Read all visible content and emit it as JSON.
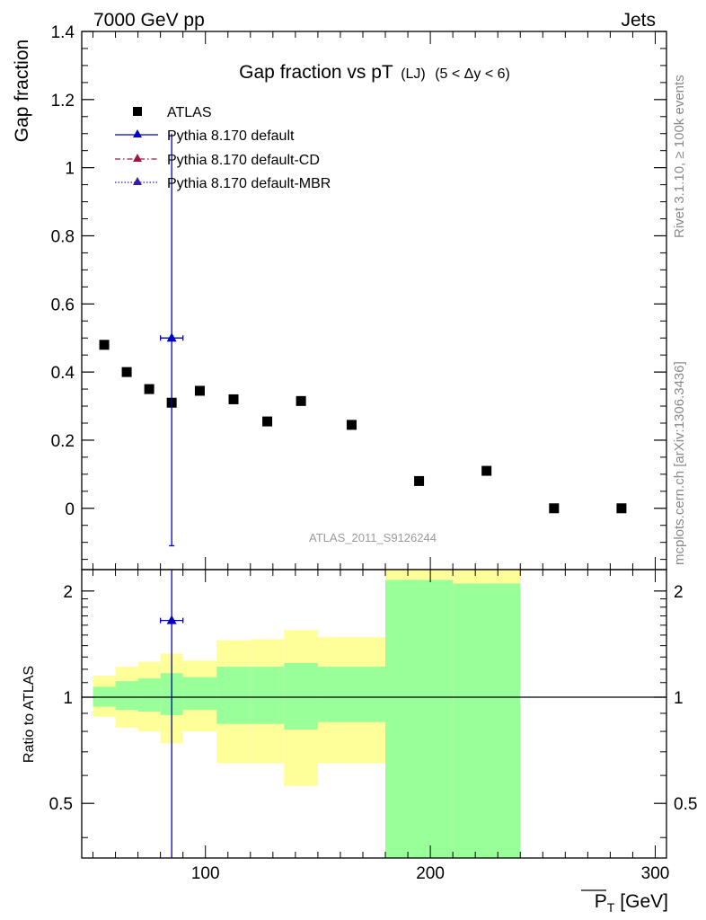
{
  "header": {
    "left": "7000 GeV pp",
    "right": "Jets"
  },
  "plot_title": {
    "main": "Gap fraction vs pT",
    "qualifier": "(LJ)",
    "condition": "(5 < Δy < 6)"
  },
  "side_labels": {
    "top": "Rivet 3.1.10, ≥ 100k events",
    "bottom": "mcplots.cern.ch [arXiv:1306.3436]"
  },
  "watermark": "ATLAS_2011_S9126244",
  "chart_data": [
    {
      "type": "scatter",
      "panel": "main",
      "ylabel": "Gap fraction",
      "xlim": [
        45,
        305
      ],
      "ylim": [
        -0.18,
        1.4
      ],
      "y_ticks": [
        0,
        0.2,
        0.4,
        0.6,
        0.8,
        1,
        1.2,
        1.4
      ],
      "legend_position": "top-left",
      "series": [
        {
          "name": "ATLAS",
          "marker": "square",
          "color": "#000000",
          "x": [
            55,
            65,
            75,
            85,
            97.5,
            112.5,
            127.5,
            142.5,
            165,
            195,
            225,
            255,
            285
          ],
          "y": [
            0.48,
            0.4,
            0.35,
            0.31,
            0.345,
            0.32,
            0.255,
            0.315,
            0.245,
            0.08,
            0.11,
            0.0,
            0.0
          ]
        },
        {
          "name": "Pythia 8.170 default",
          "marker": "triangle",
          "line": "solid",
          "color": "#0000cc",
          "x": [
            85
          ],
          "x_err": [
            5
          ],
          "y": [
            0.5
          ],
          "y_err_low": [
            0.61
          ],
          "y_err_high": [
            0.6
          ]
        },
        {
          "name": "Pythia 8.170 default-CD",
          "marker": "triangle",
          "line": "dash-dot",
          "color": "#a01540",
          "x": [],
          "y": []
        },
        {
          "name": "Pythia 8.170 default-MBR",
          "marker": "triangle",
          "line": "dotted",
          "color": "#3a1aa0",
          "x": [],
          "y": []
        }
      ]
    },
    {
      "type": "area",
      "panel": "ratio",
      "ylabel": "Ratio to ATLAS",
      "xlabel": "P_T [GeV]",
      "xlabel_symbol": "P",
      "xlabel_sub": "T",
      "xlabel_unit": "[GeV]",
      "xlim": [
        45,
        305
      ],
      "ylim": [
        0.35,
        2.3
      ],
      "log_y": true,
      "x_ticks": [
        100,
        200,
        300
      ],
      "y_ticks": [
        0.5,
        1,
        2
      ],
      "bins": [
        {
          "lo": 50,
          "hi": 60,
          "stat_lo": 0.94,
          "stat_hi": 1.07,
          "tot_lo": 0.88,
          "tot_hi": 1.15
        },
        {
          "lo": 60,
          "hi": 70,
          "stat_lo": 0.92,
          "stat_hi": 1.11,
          "tot_lo": 0.82,
          "tot_hi": 1.22
        },
        {
          "lo": 70,
          "hi": 80,
          "stat_lo": 0.91,
          "stat_hi": 1.13,
          "tot_lo": 0.8,
          "tot_hi": 1.26
        },
        {
          "lo": 80,
          "hi": 90,
          "stat_lo": 0.89,
          "stat_hi": 1.17,
          "tot_lo": 0.74,
          "tot_hi": 1.33
        },
        {
          "lo": 90,
          "hi": 105,
          "stat_lo": 0.92,
          "stat_hi": 1.14,
          "tot_lo": 0.8,
          "tot_hi": 1.27
        },
        {
          "lo": 105,
          "hi": 120,
          "stat_lo": 0.84,
          "stat_hi": 1.22,
          "tot_lo": 0.65,
          "tot_hi": 1.45
        },
        {
          "lo": 120,
          "hi": 135,
          "stat_lo": 0.84,
          "stat_hi": 1.22,
          "tot_lo": 0.65,
          "tot_hi": 1.46
        },
        {
          "lo": 135,
          "hi": 150,
          "stat_lo": 0.81,
          "stat_hi": 1.25,
          "tot_lo": 0.56,
          "tot_hi": 1.55
        },
        {
          "lo": 150,
          "hi": 180,
          "stat_lo": 0.85,
          "stat_hi": 1.22,
          "tot_lo": 0.65,
          "tot_hi": 1.48
        },
        {
          "lo": 180,
          "hi": 210,
          "stat_lo": 0.35,
          "stat_hi": 2.15,
          "tot_lo": 0.35,
          "tot_hi": 2.3
        },
        {
          "lo": 210,
          "hi": 240,
          "stat_lo": 0.35,
          "stat_hi": 2.1,
          "tot_lo": 0.35,
          "tot_hi": 2.3
        }
      ],
      "mc_points": [
        {
          "x": 85,
          "x_err": 5,
          "y": 1.65,
          "y_err_low": 1.3,
          "y_err_high": 0.65,
          "color": "#0000cc"
        }
      ],
      "reference_line": 1
    }
  ],
  "colors": {
    "stat_band": "#99ff99",
    "total_band": "#ffff99",
    "pythia_default": "#0000cc",
    "pythia_cd": "#a01540",
    "pythia_mbr": "#3a1aa0"
  }
}
